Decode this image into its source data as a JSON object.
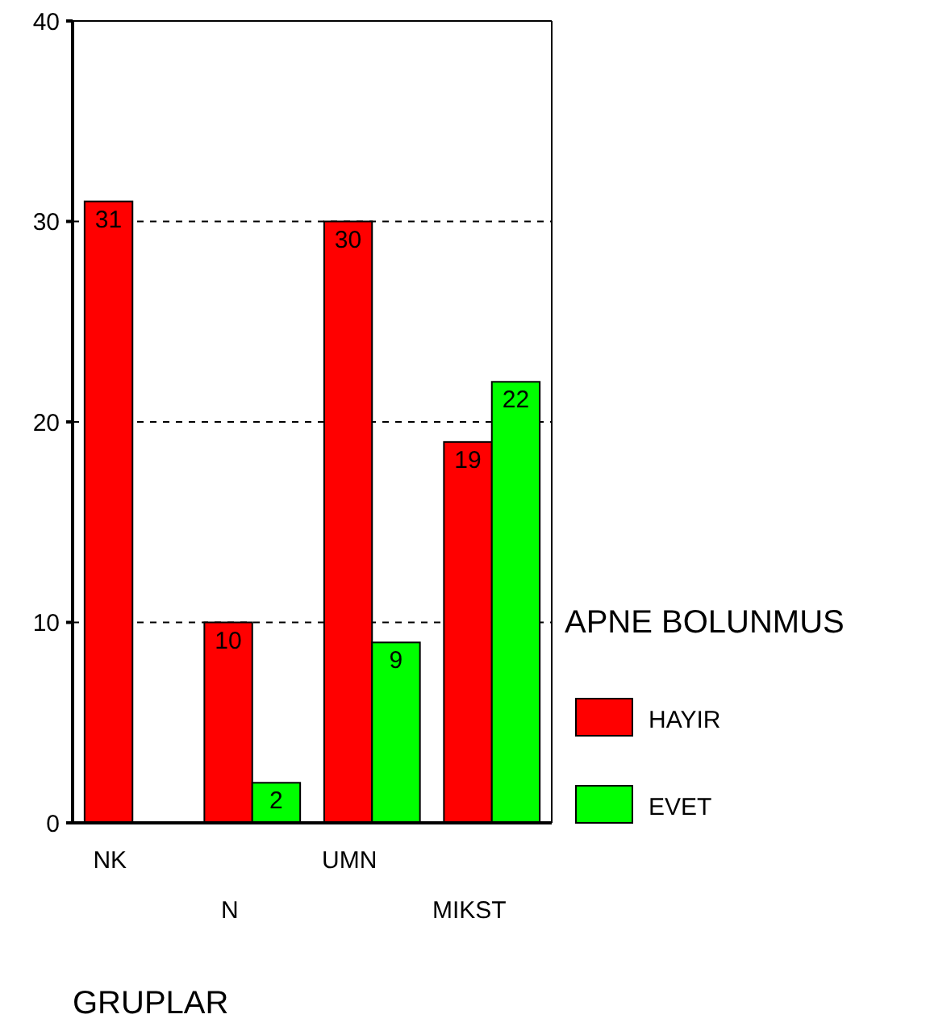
{
  "chart_data": {
    "type": "bar",
    "xlabel": "GRUPLAR",
    "legend_title": "APNE BOLUNMUS",
    "categories": [
      "NK",
      "N",
      "UMN",
      "MIKST"
    ],
    "series": [
      {
        "name": "HAYIR",
        "color": "#ff0000",
        "values": [
          31,
          10,
          30,
          19
        ],
        "value_labels": [
          "31",
          "10",
          "30",
          "19"
        ]
      },
      {
        "name": "EVET",
        "color": "#00ff00",
        "values": [
          0,
          2,
          9,
          22
        ],
        "value_labels": [
          null,
          "2",
          "9",
          "22"
        ]
      }
    ],
    "ylim": [
      0,
      40
    ],
    "yticks": [
      0,
      10,
      20,
      30,
      40
    ],
    "grid": "y",
    "legend": "right"
  }
}
